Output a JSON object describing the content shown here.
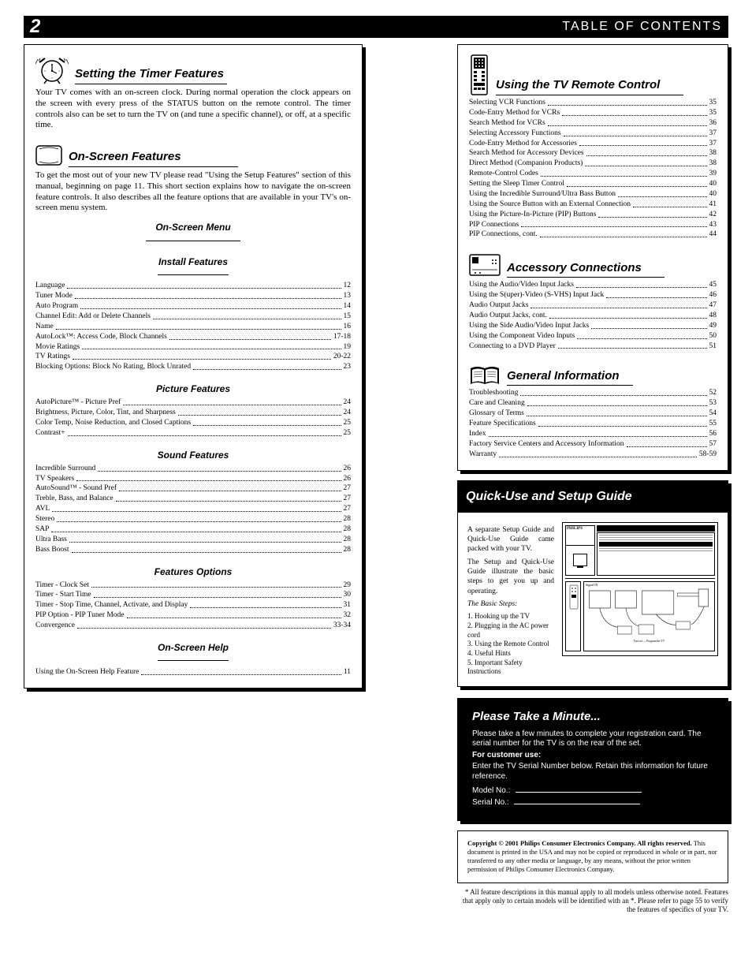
{
  "header": {
    "page_num": "2",
    "title": "TABLE OF CONTENTS"
  },
  "left_box": {
    "timer": {
      "title": "Setting the Timer Features",
      "body": "Your TV comes with an on-screen clock. During normal operation the clock appears on the screen with every press of the STATUS button on the remote control. The timer controls also can be set to turn the TV on (and tune a specific channel), or off, at a specific time."
    },
    "screen": {
      "title": "On-Screen Features",
      "steps": "To get the most out of your new TV please read \"Using the Setup Features\" section of this manual, beginning on page 11. This short section explains how to navigate the on-screen feature controls. It also describes all the feature options that are available in your TV's on-screen menu system.",
      "menu_heading": "On-Screen Menu",
      "install": {
        "title": "Install Features",
        "items": [
          {
            "label": "Language",
            "page": "12"
          },
          {
            "label": "Tuner Mode",
            "page": "13"
          },
          {
            "label": "Auto Program",
            "page": "14"
          },
          {
            "label": "Channel Edit: Add or Delete Channels",
            "page": "15"
          },
          {
            "label": "Name",
            "page": "16"
          },
          {
            "label": "AutoLock™: Access Code, Block Channels",
            "page": "17-18"
          },
          {
            "label": "Movie Ratings",
            "page": "19"
          },
          {
            "label": "TV Ratings",
            "page": "20-22"
          },
          {
            "label": "Blocking Options: Block No Rating, Block Unrated",
            "page": "23"
          }
        ]
      },
      "picture": {
        "title": "Picture Features",
        "items": [
          {
            "label": "AutoPicture™ - Picture Pref",
            "page": "24"
          },
          {
            "label": "Brightness, Picture, Color, Tint, and Sharpness",
            "page": "24"
          },
          {
            "label": "Color Temp, Noise Reduction, and Closed Captions",
            "page": "25"
          },
          {
            "label": "Contrast+",
            "page": "25"
          }
        ]
      },
      "sound": {
        "title": "Sound Features",
        "items": [
          {
            "label": "Incredible Surround",
            "page": "26"
          },
          {
            "label": "TV Speakers",
            "page": "26"
          },
          {
            "label": "AutoSound™ - Sound Pref",
            "page": "27"
          },
          {
            "label": "Treble, Bass, and Balance",
            "page": "27"
          },
          {
            "label": "AVL",
            "page": "27"
          },
          {
            "label": "Stereo",
            "page": "28"
          },
          {
            "label": "SAP",
            "page": "28"
          },
          {
            "label": "Ultra Bass",
            "page": "28"
          },
          {
            "label": "Bass Boost",
            "page": "28"
          }
        ]
      },
      "features": {
        "title": "Features Options",
        "items": [
          {
            "label": "Timer - Clock Set",
            "page": "29"
          },
          {
            "label": "Timer - Start Time",
            "page": "30"
          },
          {
            "label": "Timer - Stop Time, Channel, Activate, and Display",
            "page": "31"
          },
          {
            "label": "PIP Option - PIP Tuner Mode",
            "page": "32"
          },
          {
            "label": "Convergence",
            "page": "33-34"
          }
        ]
      },
      "onscreen_help": {
        "title": "On-Screen Help",
        "items": [
          {
            "label": "Using the On-Screen Help Feature",
            "page": "11"
          }
        ]
      }
    }
  },
  "right_box": {
    "remote": {
      "title": "Using the TV Remote Control",
      "items": [
        {
          "label": "Selecting VCR Functions",
          "page": "35"
        },
        {
          "label": "Code-Entry Method for VCRs",
          "page": "35"
        },
        {
          "label": "Search Method for VCRs",
          "page": "36"
        },
        {
          "label": "Selecting Accessory Functions",
          "page": "37"
        },
        {
          "label": "Code-Entry Method for Accessories",
          "page": "37"
        },
        {
          "label": "Search Method for Accessory Devices",
          "page": "38"
        },
        {
          "label": "Direct Method (Companion Products)",
          "page": "38"
        },
        {
          "label": "Remote-Control Codes",
          "page": "39"
        },
        {
          "label": "Setting the Sleep Timer Control",
          "page": "40"
        },
        {
          "label": "Using the Incredible Surround/Ultra Bass Button",
          "page": "40"
        },
        {
          "label": "Using the Source Button with an External Connection",
          "page": "41"
        },
        {
          "label": "Using the Picture-In-Picture (PIP) Buttons",
          "page": "42"
        },
        {
          "label": "PIP Connections",
          "page": "43"
        },
        {
          "label": "PIP Connections, cont.",
          "page": "44"
        }
      ]
    },
    "acc": {
      "title": "Accessory Connections",
      "items": [
        {
          "label": "Using the Audio/Video Input Jacks",
          "page": "45"
        },
        {
          "label": "Using the S(uper)-Video (S-VHS) Input Jack",
          "page": "46"
        },
        {
          "label": "Audio Output Jacks",
          "page": "47"
        },
        {
          "label": "Audio Output Jacks, cont.",
          "page": "48"
        },
        {
          "label": "Using the Side Audio/Video Input Jacks",
          "page": "49"
        },
        {
          "label": "Using the Component Video Inputs",
          "page": "50"
        },
        {
          "label": "Connecting to a DVD Player",
          "page": "51"
        }
      ]
    },
    "gen": {
      "title": "General Information",
      "items": [
        {
          "label": "Troubleshooting",
          "page": "52"
        },
        {
          "label": "Care and Cleaning",
          "page": "53"
        },
        {
          "label": "Glossary of Terms",
          "page": "54"
        },
        {
          "label": "Feature Specifications",
          "page": "55"
        },
        {
          "label": "Index",
          "page": "56"
        },
        {
          "label": "Factory Service Centers and Accessory Information",
          "page": "57"
        },
        {
          "label": "Warranty",
          "page": "58-59"
        }
      ]
    }
  },
  "qrg": {
    "title": "Quick-Use and Setup Guide",
    "text1": "A separate Setup Guide and Quick-Use Guide came packed with your TV.",
    "text2": "The Setup and Quick-Use Guide illustrate the basic steps to get you up and operating.",
    "text3": "The Basic Steps:",
    "steps": [
      "Hooking up the TV",
      "Plugging in the AC power cord",
      "Using the Remote Control",
      "Useful Hints",
      "Important Safety Instructions"
    ]
  },
  "warranty": {
    "title": "Please Take a Minute...",
    "body1": "Please take a few minutes to complete your registration card. The serial number for the TV is on the rear of the set.",
    "body2": "For customer use:",
    "body3": "Enter the TV Serial Number below. Retain this information for future reference.",
    "model_label": "Model No.:",
    "serial_label": "Serial No.:"
  },
  "copyright": {
    "line1": "Copyright © 2001 Philips Consumer Electronics Company. All rights reserved.",
    "line2": "This document is printed in the USA and may not be copied or reproduced in whole or in part, nor transferred to any other media or language, by any means, without the prior written permission of Philips Consumer Electronics Company."
  },
  "footer": "* All feature descriptions in this manual apply to all models unless otherwise noted. Features that apply only to certain models will be identified with an *. Please refer to page 55 to verify the features of specifics of your TV."
}
